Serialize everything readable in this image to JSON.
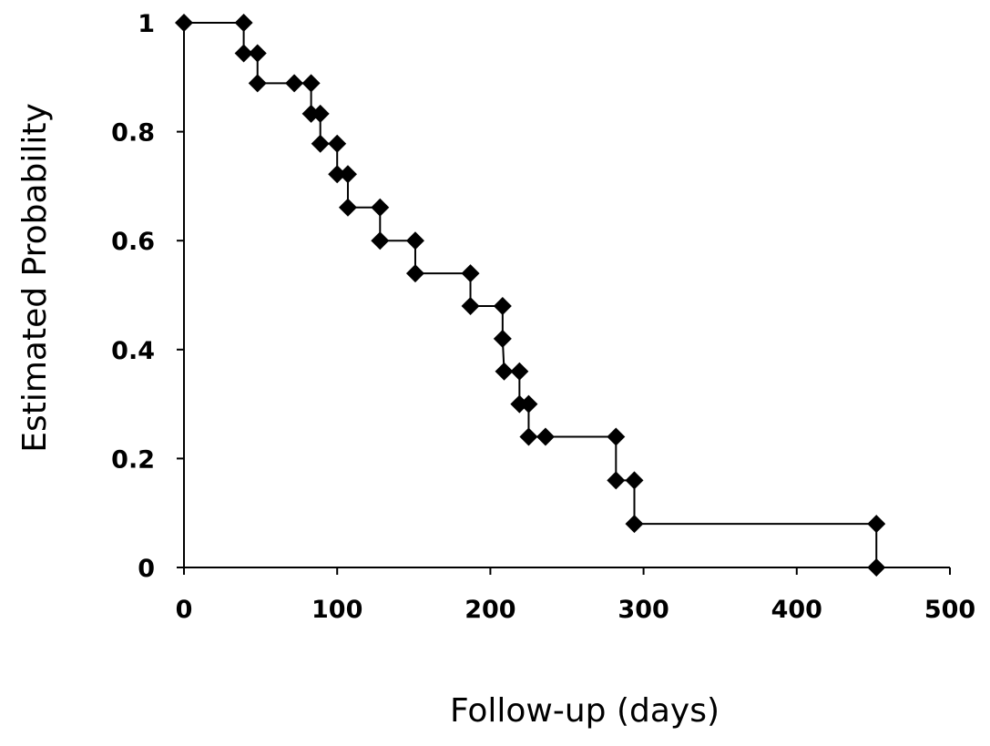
{
  "chart_data": {
    "type": "line",
    "title": "",
    "xlabel": "Follow-up (days)",
    "ylabel": "Estimated Probability",
    "xlim": [
      0,
      500
    ],
    "ylim": [
      0,
      1
    ],
    "x_ticks": [
      0,
      100,
      200,
      300,
      400,
      500
    ],
    "x_tick_labels": [
      "0",
      "100",
      "200",
      "300",
      "400",
      "500"
    ],
    "y_ticks": [
      0,
      0.2,
      0.4,
      0.6,
      0.8,
      1
    ],
    "y_tick_labels": [
      "0",
      "0.2",
      "0.4",
      "0.6",
      "0.8",
      "1"
    ],
    "grid": false,
    "legend": "none",
    "line_style": "step",
    "marker": "diamond",
    "color": "#000000",
    "series": [
      {
        "points": [
          {
            "x": 0,
            "y": 1.0
          },
          {
            "x": 39,
            "y": 1.0
          },
          {
            "x": 39,
            "y": 0.944
          },
          {
            "x": 48,
            "y": 0.944
          },
          {
            "x": 48,
            "y": 0.889
          },
          {
            "x": 72,
            "y": 0.889
          },
          {
            "x": 83,
            "y": 0.889
          },
          {
            "x": 83,
            "y": 0.833
          },
          {
            "x": 89,
            "y": 0.833
          },
          {
            "x": 89,
            "y": 0.778
          },
          {
            "x": 100,
            "y": 0.778
          },
          {
            "x": 100,
            "y": 0.722
          },
          {
            "x": 107,
            "y": 0.722
          },
          {
            "x": 107,
            "y": 0.661
          },
          {
            "x": 128,
            "y": 0.661
          },
          {
            "x": 128,
            "y": 0.6
          },
          {
            "x": 151,
            "y": 0.6
          },
          {
            "x": 151,
            "y": 0.54
          },
          {
            "x": 187,
            "y": 0.54
          },
          {
            "x": 187,
            "y": 0.48
          },
          {
            "x": 208,
            "y": 0.48
          },
          {
            "x": 208,
            "y": 0.42
          },
          {
            "x": 209,
            "y": 0.36
          },
          {
            "x": 219,
            "y": 0.36
          },
          {
            "x": 219,
            "y": 0.3
          },
          {
            "x": 225,
            "y": 0.3
          },
          {
            "x": 225,
            "y": 0.24
          },
          {
            "x": 236,
            "y": 0.24
          },
          {
            "x": 282,
            "y": 0.24
          },
          {
            "x": 282,
            "y": 0.16
          },
          {
            "x": 294,
            "y": 0.16
          },
          {
            "x": 294,
            "y": 0.08
          },
          {
            "x": 452,
            "y": 0.08
          },
          {
            "x": 452,
            "y": 0.0
          }
        ]
      }
    ]
  }
}
